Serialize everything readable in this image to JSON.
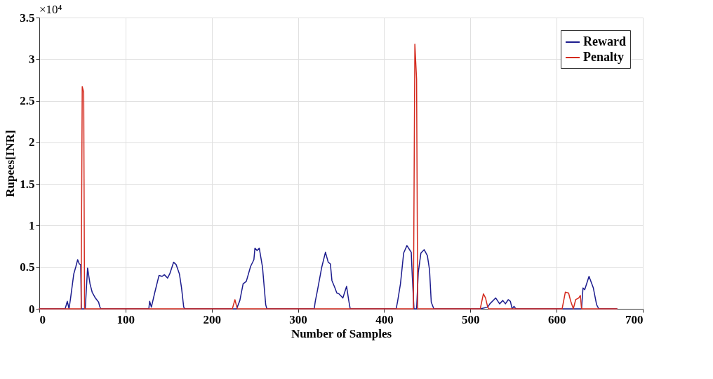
{
  "chart_data": {
    "type": "line",
    "xlabel": "Number of Samples",
    "ylabel": "Rupees[INR]",
    "xlim": [
      0,
      700
    ],
    "xticks": [
      0,
      100,
      200,
      300,
      400,
      500,
      600,
      700
    ],
    "ylim": [
      0,
      3.5
    ],
    "yticks": [
      0,
      0.5,
      1,
      1.5,
      2,
      2.5,
      3,
      3.5
    ],
    "annotations": [
      "×10⁴"
    ],
    "grid": true,
    "legend": "top right",
    "line_style": "solid",
    "marker": "none",
    "series": [
      {
        "name": "Reward",
        "color": "#1c1c8e",
        "x": [
          0,
          30,
          32.5,
          34.5,
          36.3,
          40,
          42.5,
          44.5,
          46.3,
          48,
          48.8,
          53.3,
          56,
          58.8,
          61.3,
          65,
          68.8,
          70,
          71.3,
          127,
          128,
          130,
          133.8,
          138.8,
          142.5,
          145,
          148.8,
          151.3,
          155.8,
          158.8,
          162.5,
          165,
          167.5,
          168.8,
          228.9,
          232.6,
          236.4,
          240.1,
          245.1,
          248.9,
          250.1,
          252.6,
          255.1,
          258.9,
          262.6,
          263.9,
          318.9,
          320.1,
          322.6,
          327.6,
          331.9,
          335.1,
          337.6,
          339.4,
          342.6,
          345.1,
          347.6,
          352.1,
          356.4,
          358.9,
          360.6,
          413.9,
          415.6,
          418.9,
          422.6,
          426.4,
          430.1,
          431.4,
          432.6,
          434.6,
          437.6,
          439.6,
          442.6,
          446.4,
          450.1,
          452.6,
          454.6,
          457.6,
          511.4,
          520.1,
          522.6,
          529.4,
          533.9,
          537.6,
          540.6,
          543.9,
          546.4,
          548.4,
          550.6,
          552.6,
          628.9,
          630.6,
          632.6,
          637.6,
          642.6,
          646.4,
          648.9,
          670
        ],
        "values": [
          0,
          0,
          0.09,
          0,
          0.13,
          0.42,
          0.51,
          0.59,
          0.54,
          0.53,
          0,
          0,
          0.49,
          0.3,
          0.2,
          0.13,
          0.08,
          0.03,
          0,
          0,
          0.09,
          0.02,
          0.19,
          0.4,
          0.39,
          0.41,
          0.37,
          0.42,
          0.56,
          0.53,
          0.42,
          0.25,
          0.02,
          0,
          0,
          0.1,
          0.3,
          0.33,
          0.51,
          0.59,
          0.73,
          0.7,
          0.73,
          0.5,
          0.05,
          0,
          0,
          0.09,
          0.22,
          0.5,
          0.68,
          0.56,
          0.54,
          0.34,
          0.26,
          0.19,
          0.18,
          0.13,
          0.27,
          0.1,
          0,
          0,
          0.09,
          0.3,
          0.67,
          0.76,
          0.7,
          0.68,
          0.39,
          0,
          0,
          0.44,
          0.67,
          0.71,
          0.64,
          0.47,
          0.08,
          0,
          0,
          0.02,
          0.06,
          0.13,
          0.06,
          0.1,
          0.06,
          0.11,
          0.09,
          0,
          0.03,
          0,
          0,
          0.25,
          0.23,
          0.39,
          0.25,
          0.05,
          0,
          0
        ]
      },
      {
        "name": "Penalty",
        "color": "#d42a1e",
        "x": [
          0,
          48.5,
          49.8,
          51.5,
          52.5,
          223.9,
          226.9,
          229.6,
          433.9,
          435.6,
          437.6,
          438.9,
          511.4,
          515.1,
          517.6,
          520.1,
          521.4,
          606.4,
          610.1,
          613.9,
          616.4,
          619.4,
          622.1,
          625.6,
          627.6,
          628.9,
          670
        ],
        "values": [
          0,
          0,
          2.67,
          2.6,
          0,
          0,
          0.11,
          0,
          0,
          3.18,
          2.76,
          0,
          0,
          0.18,
          0.13,
          0.02,
          0,
          0,
          0.2,
          0.19,
          0.09,
          0,
          0.11,
          0.13,
          0.16,
          0,
          0
        ]
      }
    ]
  }
}
